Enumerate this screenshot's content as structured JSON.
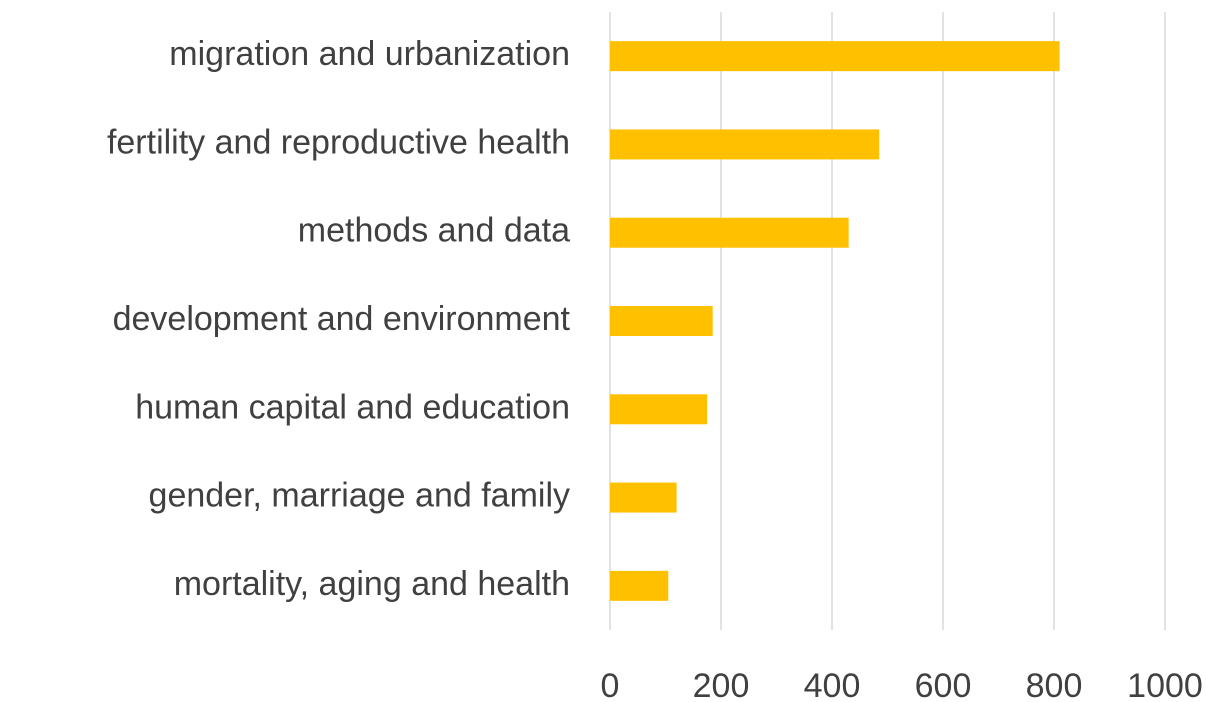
{
  "chart_data": {
    "type": "barh",
    "categories": [
      "migration and urbanization",
      "fertility and reproductive health",
      "methods and data",
      "development and environment",
      "human capital and education",
      "gender, marriage and family",
      "mortality, aging and health"
    ],
    "values": [
      810,
      485,
      430,
      185,
      175,
      120,
      105
    ],
    "color": "#ffc000",
    "xlim": [
      0,
      1000
    ],
    "xticks": [
      0,
      200,
      400,
      600,
      800,
      1000
    ],
    "grid": true
  }
}
